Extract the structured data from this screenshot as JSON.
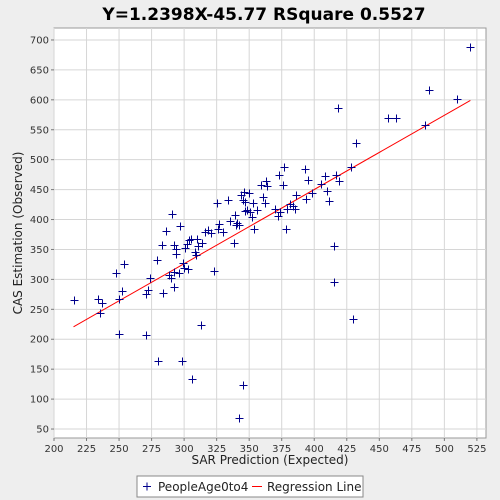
{
  "chart_data": {
    "type": "scatter",
    "title": "Y=1.2398X-45.77    RSquare 0.5527",
    "xlabel": "SAR Prediction (Expected)",
    "ylabel": "CAS Estimation (Observed)",
    "xlim": [
      200,
      532
    ],
    "ylim": [
      35,
      720
    ],
    "xticks": [
      200,
      225,
      250,
      275,
      300,
      325,
      350,
      375,
      400,
      425,
      450,
      475,
      500,
      525
    ],
    "yticks": [
      50,
      100,
      150,
      200,
      250,
      300,
      350,
      400,
      450,
      500,
      550,
      600,
      650,
      700
    ],
    "grid": true,
    "legend_position": "bottom",
    "series": [
      {
        "name": "PeopleAge0to4",
        "kind": "scatter",
        "color": "#00008b",
        "points": [
          [
            215,
            265
          ],
          [
            234,
            268
          ],
          [
            235,
            244
          ],
          [
            237,
            260
          ],
          [
            248,
            310
          ],
          [
            250,
            208
          ],
          [
            250,
            268
          ],
          [
            252,
            280
          ],
          [
            254,
            325
          ],
          [
            271,
            207
          ],
          [
            271,
            276
          ],
          [
            272,
            283
          ],
          [
            274,
            302
          ],
          [
            279,
            333
          ],
          [
            280,
            163
          ],
          [
            283,
            357
          ],
          [
            284,
            277
          ],
          [
            286,
            381
          ],
          [
            288,
            308
          ],
          [
            290,
            302
          ],
          [
            291,
            410
          ],
          [
            292,
            313
          ],
          [
            292,
            357
          ],
          [
            292,
            287
          ],
          [
            294,
            350
          ],
          [
            294,
            343
          ],
          [
            296,
            310
          ],
          [
            297,
            389
          ],
          [
            298,
            164
          ],
          [
            299,
            327
          ],
          [
            300,
            319
          ],
          [
            301,
            353
          ],
          [
            302,
            359
          ],
          [
            303,
            318
          ],
          [
            304,
            365
          ],
          [
            305,
            367
          ],
          [
            306,
            133
          ],
          [
            308,
            345
          ],
          [
            309,
            340
          ],
          [
            310,
            368
          ],
          [
            311,
            355
          ],
          [
            313,
            223
          ],
          [
            314,
            361
          ],
          [
            316,
            380
          ],
          [
            318,
            383
          ],
          [
            321,
            378
          ],
          [
            323,
            314
          ],
          [
            325,
            428
          ],
          [
            326,
            385
          ],
          [
            327,
            392
          ],
          [
            330,
            380
          ],
          [
            334,
            432
          ],
          [
            335,
            398
          ],
          [
            338,
            360
          ],
          [
            339,
            408
          ],
          [
            340,
            391
          ],
          [
            341,
            395
          ],
          [
            342,
            69
          ],
          [
            342,
            391
          ],
          [
            344,
            441
          ],
          [
            345,
            432
          ],
          [
            345,
            123
          ],
          [
            346,
            446
          ],
          [
            347,
            430
          ],
          [
            347,
            415
          ],
          [
            348,
            416
          ],
          [
            350,
            445
          ],
          [
            351,
            412
          ],
          [
            352,
            404
          ],
          [
            353,
            427
          ],
          [
            354,
            384
          ],
          [
            356,
            416
          ],
          [
            359,
            458
          ],
          [
            361,
            437
          ],
          [
            362,
            428
          ],
          [
            363,
            464
          ],
          [
            364,
            456
          ],
          [
            370,
            418
          ],
          [
            372,
            406
          ],
          [
            373,
            475
          ],
          [
            374,
            412
          ],
          [
            376,
            458
          ],
          [
            377,
            488
          ],
          [
            378,
            384
          ],
          [
            379,
            418
          ],
          [
            381,
            426
          ],
          [
            384,
            422
          ],
          [
            385,
            418
          ],
          [
            386,
            441
          ],
          [
            393,
            485
          ],
          [
            394,
            435
          ],
          [
            395,
            466
          ],
          [
            398,
            444
          ],
          [
            405,
            460
          ],
          [
            408,
            472
          ],
          [
            410,
            448
          ],
          [
            411,
            431
          ],
          [
            415,
            356
          ],
          [
            415,
            295
          ],
          [
            417,
            474
          ],
          [
            418,
            586
          ],
          [
            419,
            465
          ],
          [
            428,
            488
          ],
          [
            430,
            234
          ],
          [
            432,
            528
          ],
          [
            457,
            570
          ],
          [
            463,
            570
          ],
          [
            485,
            558
          ],
          [
            488,
            616
          ],
          [
            510,
            602
          ],
          [
            520,
            688
          ]
        ]
      },
      {
        "name": "Regression Line",
        "kind": "line",
        "color": "#ff0000",
        "slope": 1.2398,
        "intercept": -45.77,
        "x_range": [
          215,
          520
        ]
      }
    ]
  }
}
